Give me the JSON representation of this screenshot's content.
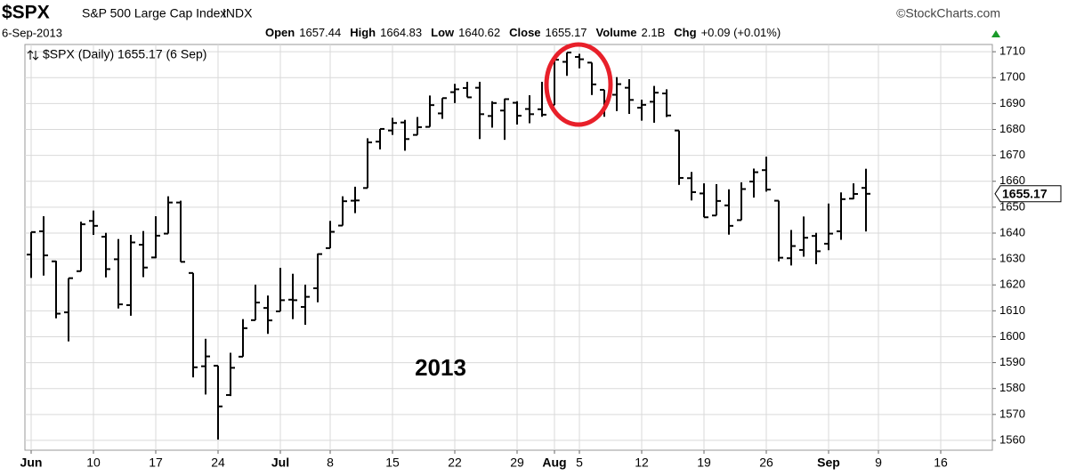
{
  "header": {
    "symbol": "$SPX",
    "name": "S&P 500 Large Cap Index",
    "exchange": "INDX",
    "source": "©StockCharts.com",
    "date": "6-Sep-2013",
    "quote": [
      {
        "label": "Open",
        "value": "1657.44"
      },
      {
        "label": "High",
        "value": "1664.83"
      },
      {
        "label": "Low",
        "value": "1640.62"
      },
      {
        "label": "Close",
        "value": "1655.17"
      },
      {
        "label": "Volume",
        "value": "2.1B"
      },
      {
        "label": "Chg",
        "value": "+0.09 (+0.01%)"
      }
    ]
  },
  "chart_data": {
    "type": "ohlc",
    "legend": "$SPX (Daily) 1655.17 (6 Sep)",
    "annotation": "2013",
    "annotation_color": "#e8202a",
    "last_price": 1655.17,
    "color": "#000000",
    "grid": true,
    "x": [
      "2013-06-03",
      "2013-06-04",
      "2013-06-05",
      "2013-06-06",
      "2013-06-07",
      "2013-06-10",
      "2013-06-11",
      "2013-06-12",
      "2013-06-13",
      "2013-06-14",
      "2013-06-17",
      "2013-06-18",
      "2013-06-19",
      "2013-06-20",
      "2013-06-21",
      "2013-06-24",
      "2013-06-25",
      "2013-06-26",
      "2013-06-27",
      "2013-06-28",
      "2013-07-01",
      "2013-07-02",
      "2013-07-03",
      "2013-07-05",
      "2013-07-08",
      "2013-07-09",
      "2013-07-10",
      "2013-07-11",
      "2013-07-12",
      "2013-07-15",
      "2013-07-16",
      "2013-07-17",
      "2013-07-18",
      "2013-07-19",
      "2013-07-22",
      "2013-07-23",
      "2013-07-24",
      "2013-07-25",
      "2013-07-26",
      "2013-07-29",
      "2013-07-30",
      "2013-07-31",
      "2013-08-01",
      "2013-08-02",
      "2013-08-05",
      "2013-08-06",
      "2013-08-07",
      "2013-08-08",
      "2013-08-09",
      "2013-08-12",
      "2013-08-13",
      "2013-08-14",
      "2013-08-15",
      "2013-08-16",
      "2013-08-19",
      "2013-08-20",
      "2013-08-21",
      "2013-08-22",
      "2013-08-23",
      "2013-08-26",
      "2013-08-27",
      "2013-08-28",
      "2013-08-29",
      "2013-08-30",
      "2013-09-03",
      "2013-09-04",
      "2013-09-05",
      "2013-09-06"
    ],
    "open": [
      1631.7,
      1640.7,
      1629.1,
      1609.4,
      1625.3,
      1644.7,
      1638.6,
      1629.9,
      1612.2,
      1635.5,
      1630.6,
      1639.8,
      1651.8,
      1624.6,
      1588.6,
      1588.8,
      1577.5,
      1592.3,
      1606.4,
      1611.1,
      1609.8,
      1614.3,
      1611.5,
      1618.7,
      1634.2,
      1642.9,
      1652.5,
      1657.4,
      1675.3,
      1679.6,
      1682.7,
      1677.9,
      1681.0,
      1686.2,
      1694.4,
      1696.0,
      1696.1,
      1685.2,
      1687.3,
      1690.3,
      1687.9,
      1687.8,
      1689.4,
      1706.1,
      1708.0,
      1705.8,
      1695.3,
      1693.4,
      1696.1,
      1688.4,
      1690.7,
      1693.9,
      1679.6,
      1661.2,
      1655.3,
      1646.8,
      1650.7,
      1645.0,
      1659.9,
      1664.3,
      1652.5,
      1630.3,
      1633.5,
      1638.9,
      1635.9,
      1640.7,
      1653.3,
      1657.44
    ],
    "high": [
      1640.4,
      1646.5,
      1629.3,
      1622.6,
      1644.4,
      1648.7,
      1640.1,
      1637.7,
      1639.3,
      1640.8,
      1646.5,
      1654.2,
      1652.5,
      1624.6,
      1599.2,
      1588.8,
      1593.8,
      1606.8,
      1620.1,
      1615.9,
      1626.6,
      1624.3,
      1620.1,
      1632.1,
      1644.7,
      1654.2,
      1657.9,
      1676.6,
      1680.2,
      1684.5,
      1683.7,
      1684.8,
      1693.1,
      1692.1,
      1697.6,
      1698.4,
      1698.4,
      1690.9,
      1691.9,
      1690.9,
      1693.2,
      1698.4,
      1707.9,
      1709.7,
      1709.2,
      1705.8,
      1695.3,
      1700.2,
      1699.4,
      1691.5,
      1696.8,
      1695.5,
      1679.6,
      1663.6,
      1659.2,
      1658.9,
      1656.9,
      1659.6,
      1664.9,
      1669.5,
      1652.5,
      1641.2,
      1646.4,
      1640.1,
      1651.4,
      1655.7,
      1659.2,
      1664.83
    ],
    "low": [
      1622.7,
      1623.6,
      1607.1,
      1598.2,
      1625.3,
      1639.3,
      1622.9,
      1610.9,
      1608.1,
      1623.0,
      1630.3,
      1639.8,
      1628.9,
      1584.3,
      1577.7,
      1560.3,
      1577.1,
      1592.3,
      1606.4,
      1601.1,
      1609.8,
      1606.8,
      1604.6,
      1613.3,
      1634.2,
      1642.9,
      1647.7,
      1657.4,
      1672.3,
      1677.9,
      1671.8,
      1677.9,
      1681.0,
      1684.1,
      1690.2,
      1692.4,
      1676.3,
      1680.7,
      1676.0,
      1681.9,
      1682.4,
      1684.9,
      1689.4,
      1700.7,
      1703.6,
      1693.3,
      1684.9,
      1687.1,
      1686.0,
      1683.4,
      1682.6,
      1684.8,
      1658.6,
      1652.6,
      1646.1,
      1646.8,
      1639.4,
      1645.0,
      1653.7,
      1656.0,
      1629.1,
      1627.5,
      1630.9,
      1628.0,
      1633.4,
      1637.4,
      1653.1,
      1640.62
    ],
    "close": [
      1640.4,
      1631.4,
      1608.9,
      1622.6,
      1643.4,
      1642.8,
      1626.1,
      1612.5,
      1636.4,
      1626.7,
      1639.0,
      1651.8,
      1628.9,
      1588.2,
      1592.4,
      1573.1,
      1588.0,
      1603.3,
      1613.2,
      1606.3,
      1614.1,
      1614.1,
      1615.4,
      1631.9,
      1640.5,
      1652.3,
      1652.6,
      1675.0,
      1680.2,
      1682.5,
      1676.3,
      1680.9,
      1689.4,
      1692.1,
      1695.5,
      1692.4,
      1685.9,
      1690.2,
      1691.7,
      1685.3,
      1685.9,
      1685.7,
      1706.9,
      1709.7,
      1707.1,
      1697.4,
      1690.9,
      1697.5,
      1691.4,
      1689.5,
      1694.2,
      1685.4,
      1661.3,
      1655.8,
      1646.1,
      1652.4,
      1642.8,
      1657.0,
      1663.5,
      1656.8,
      1630.5,
      1635.0,
      1638.2,
      1633.0,
      1639.8,
      1653.1,
      1655.1,
      1655.17
    ],
    "ylim": [
      1556.2,
      1712.8
    ],
    "yticks": [
      1560,
      1570,
      1580,
      1590,
      1600,
      1610,
      1620,
      1630,
      1640,
      1650,
      1660,
      1670,
      1680,
      1690,
      1700,
      1710
    ],
    "xticks": [
      {
        "value": "2013-06-03",
        "label": "Jun"
      },
      {
        "value": "2013-06-10",
        "label": "10"
      },
      {
        "value": "2013-06-17",
        "label": "17"
      },
      {
        "value": "2013-06-24",
        "label": "24"
      },
      {
        "value": "2013-07-01",
        "label": "Jul"
      },
      {
        "value": "2013-07-08",
        "label": "8"
      },
      {
        "value": "2013-07-15",
        "label": "15"
      },
      {
        "value": "2013-07-22",
        "label": "22"
      },
      {
        "value": "2013-07-29",
        "label": "29"
      },
      {
        "value": "2013-08-01",
        "label": "Aug"
      },
      {
        "value": "2013-08-05",
        "label": "5"
      },
      {
        "value": "2013-08-12",
        "label": "12"
      },
      {
        "value": "2013-08-19",
        "label": "19"
      },
      {
        "value": "2013-08-26",
        "label": "26"
      },
      {
        "value": "2013-09-03",
        "label": "Sep"
      },
      {
        "value": "2013-09-09",
        "label": "9"
      },
      {
        "value": "2013-09-16",
        "label": "16"
      }
    ]
  }
}
